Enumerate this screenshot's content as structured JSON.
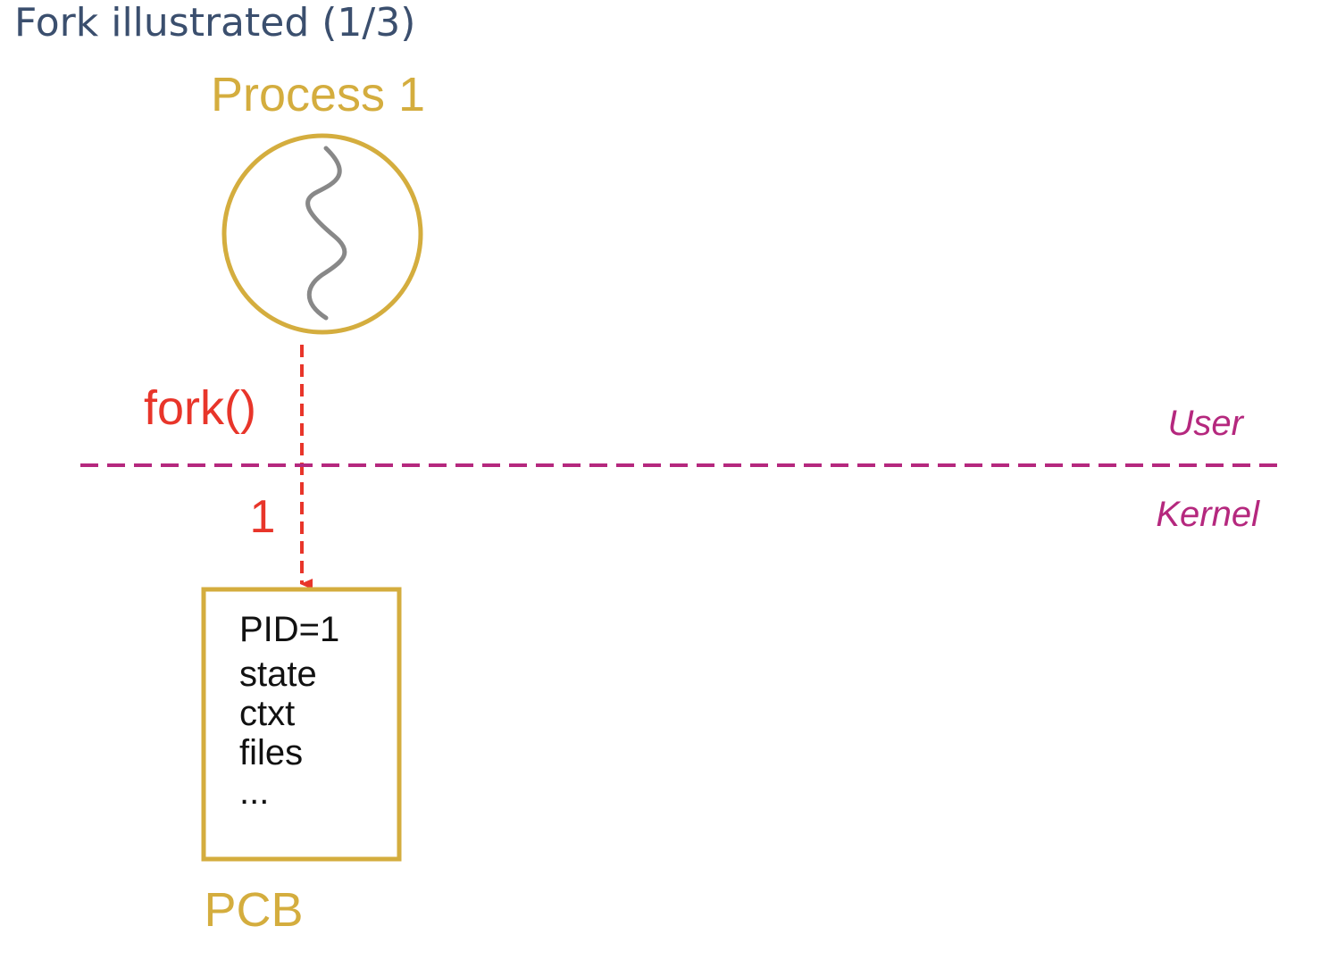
{
  "title": "Fork illustrated (1/3)",
  "process": {
    "label": "Process 1"
  },
  "syscall": {
    "label": "fork()",
    "step": "1"
  },
  "boundary": {
    "user_label": "User",
    "kernel_label": "Kernel"
  },
  "pcb": {
    "label": "PCB",
    "fields": [
      "PID=1",
      "state",
      "ctxt",
      "files",
      "..."
    ]
  },
  "colors": {
    "title": "#3b4f6e",
    "process": "#d4ad3e",
    "syscall": "#e8352a",
    "boundary": "#b5287e",
    "thread": "#888888",
    "text": "#111111"
  },
  "icons": {
    "thread": "squiggle-thread-icon"
  }
}
